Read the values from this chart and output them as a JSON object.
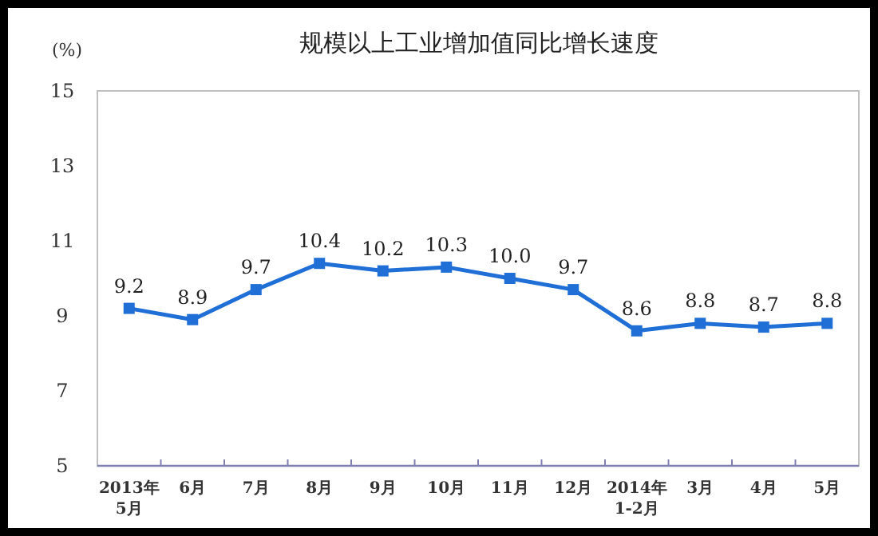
{
  "chart_data": {
    "type": "line",
    "title": "规模以上工业增加值同比增长速度",
    "ylabel": "(%)",
    "categories": [
      "2013年\n5月",
      "6月",
      "7月",
      "8月",
      "9月",
      "10月",
      "11月",
      "12月",
      "2014年\n1-2月",
      "3月",
      "4月",
      "5月"
    ],
    "series": [
      {
        "color": "#1f6fd6",
        "values": [
          9.2,
          8.9,
          9.7,
          10.4,
          10.2,
          10.3,
          10.0,
          9.7,
          8.6,
          8.8,
          8.7,
          8.8
        ],
        "value_labels": [
          "9.2",
          "8.9",
          "9.7",
          "10.4",
          "10.2",
          "10.3",
          "10.0",
          "9.7",
          "8.6",
          "8.8",
          "8.7",
          "8.8"
        ]
      }
    ],
    "ylim": [
      5,
      15
    ],
    "yticks": [
      5,
      7,
      9,
      11,
      13,
      15
    ],
    "grid": false,
    "marker": "square",
    "line_style": "solid"
  }
}
